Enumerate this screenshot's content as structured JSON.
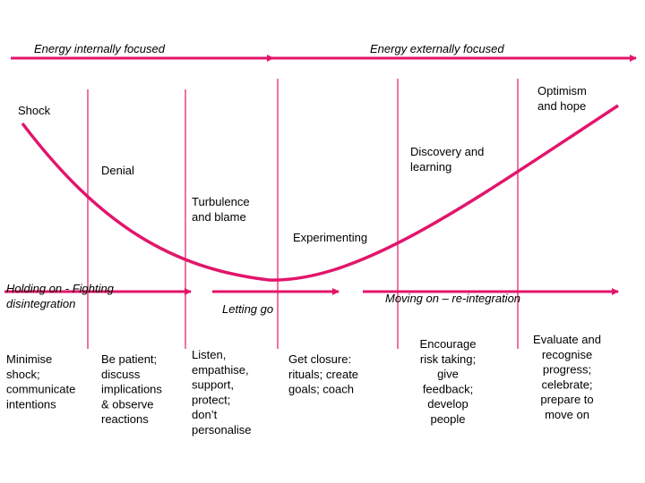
{
  "phases": {
    "internal": "Energy internally focused",
    "external": "Energy externally focused"
  },
  "curve_labels": [
    {
      "lines": [
        "Shock"
      ]
    },
    {
      "lines": [
        "Denial"
      ]
    },
    {
      "lines": [
        "Turbulence",
        "and blame"
      ]
    },
    {
      "lines": [
        "Experimenting"
      ]
    },
    {
      "lines": [
        "Discovery and",
        "learning"
      ]
    },
    {
      "lines": [
        "Optimism",
        "and hope"
      ]
    }
  ],
  "stages": [
    {
      "lines": [
        "Holding on - Fighting",
        "disintegration"
      ]
    },
    {
      "lines": [
        "Letting go"
      ]
    },
    {
      "lines": [
        "Moving on – re-integration"
      ]
    }
  ],
  "actions": [
    {
      "lines": [
        "Minimise",
        "shock;",
        "communicate",
        "intentions"
      ]
    },
    {
      "lines": [
        "Be patient;",
        "discuss",
        "implications",
        "& observe",
        "reactions"
      ]
    },
    {
      "lines": [
        "Listen,",
        "empathise,",
        "support,",
        "protect;",
        "don’t",
        "personalise"
      ]
    },
    {
      "lines": [
        "Get closure:",
        "rituals; create",
        "goals; coach"
      ]
    },
    {
      "lines": [
        "Encourage",
        "risk taking;",
        "give",
        "feedback;",
        "develop",
        "people"
      ]
    },
    {
      "lines": [
        "Evaluate and",
        "recognise",
        "progress;",
        "celebrate;",
        "prepare to",
        "move on"
      ]
    }
  ]
}
